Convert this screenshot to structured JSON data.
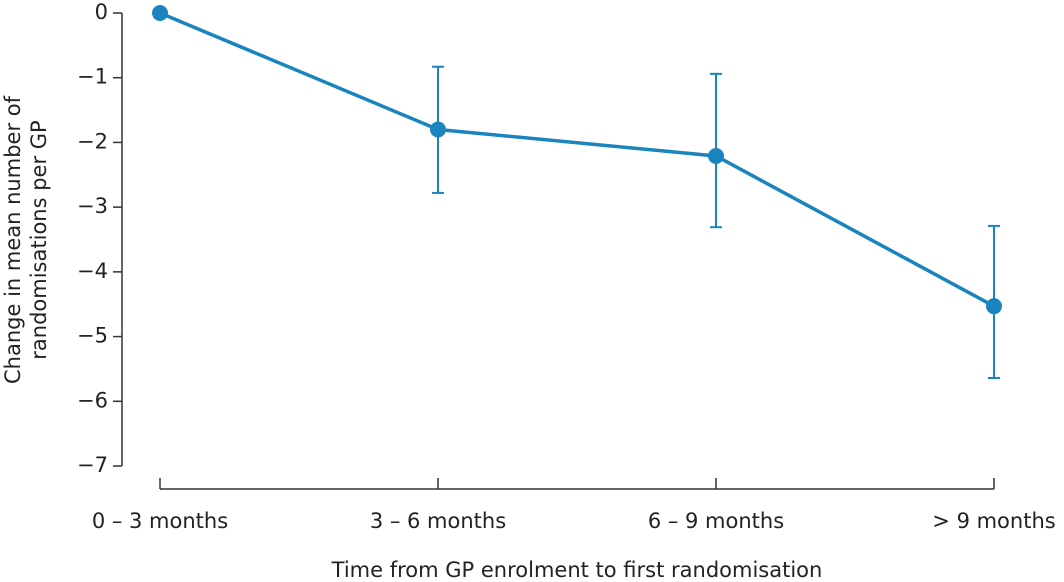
{
  "chart_data": {
    "type": "line",
    "ylabel": [
      "Change in mean number of",
      "randomisations per GP"
    ],
    "xlabel": "Time from GP enrolment to first randomisation",
    "categories": [
      "0 – 3 months",
      "3 – 6 months",
      "6 – 9 months",
      "> 9 months"
    ],
    "series": [
      {
        "color": "#1a84bf",
        "values": [
          0,
          -1.8,
          -2.21,
          -4.53
        ],
        "ci_low": [
          null,
          -2.78,
          -3.31,
          -5.64
        ],
        "ci_high": [
          null,
          -0.83,
          -0.94,
          -3.29
        ]
      }
    ],
    "ylim": [
      -7,
      0
    ],
    "yticks": [
      0,
      {
        "value": -1,
        "label": "−1"
      },
      {
        "value": -2,
        "label": "−2"
      },
      {
        "value": -3,
        "label": "−3"
      },
      {
        "value": -4,
        "label": "−4"
      },
      {
        "value": -5,
        "label": "−5"
      },
      {
        "value": -6,
        "label": "−6"
      },
      {
        "value": -7,
        "label": "−7"
      }
    ],
    "grid": false
  }
}
